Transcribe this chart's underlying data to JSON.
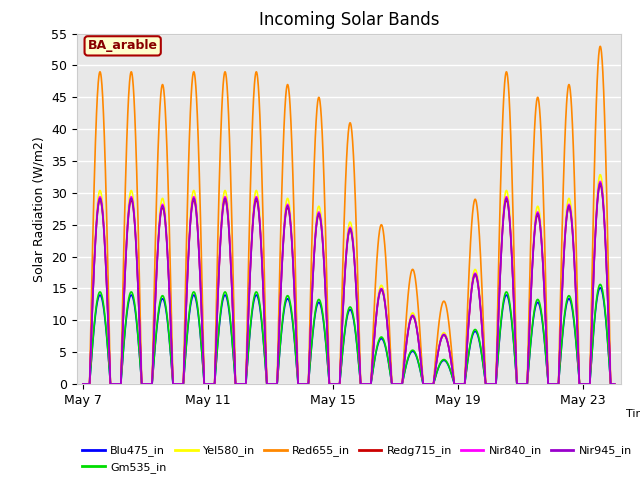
{
  "title": "Incoming Solar Bands",
  "xlabel": "Time",
  "ylabel": "Solar Radiation (W/m2)",
  "annotation": "BA_arable",
  "ylim": [
    0,
    55
  ],
  "x_ticks_labels": [
    "May 7",
    "May 11",
    "May 15",
    "May 19",
    "May 23"
  ],
  "x_ticks_positions": [
    0,
    4,
    8,
    12,
    16
  ],
  "series_order": [
    "Blu475_in",
    "Gm535_in",
    "Yel580_in",
    "Red655_in",
    "Redg715_in",
    "Nir840_in",
    "Nir945_in"
  ],
  "legend_order": [
    "Blu475_in",
    "Gm535_in",
    "Yel580_in",
    "Red655_in",
    "Redg715_in",
    "Nir840_in",
    "Nir945_in"
  ],
  "series": {
    "Blu475_in": {
      "color": "#0000ff",
      "lw": 1.2
    },
    "Gm535_in": {
      "color": "#00dd00",
      "lw": 1.2
    },
    "Yel580_in": {
      "color": "#ffff00",
      "lw": 1.2
    },
    "Red655_in": {
      "color": "#ff8800",
      "lw": 1.2
    },
    "Redg715_in": {
      "color": "#cc0000",
      "lw": 1.2
    },
    "Nir840_in": {
      "color": "#ff00ff",
      "lw": 1.2
    },
    "Nir945_in": {
      "color": "#9900cc",
      "lw": 1.2
    }
  },
  "plot_bg": "#e8e8e8",
  "annotation_bg": "#ffffcc",
  "annotation_border": "#aa0000",
  "annotation_text_color": "#880000",
  "day_peaks_orange": [
    49,
    49,
    47,
    49,
    49,
    49,
    47,
    45,
    41,
    25,
    18,
    13,
    29,
    49,
    45,
    47,
    53
  ],
  "ratios": {
    "Blu475_in": 0.285,
    "Gm535_in": 0.295,
    "Yel580_in": 0.62,
    "Red655_in": 1.0,
    "Redg715_in": 0.59,
    "Nir840_in": 0.6,
    "Nir945_in": 0.595
  }
}
